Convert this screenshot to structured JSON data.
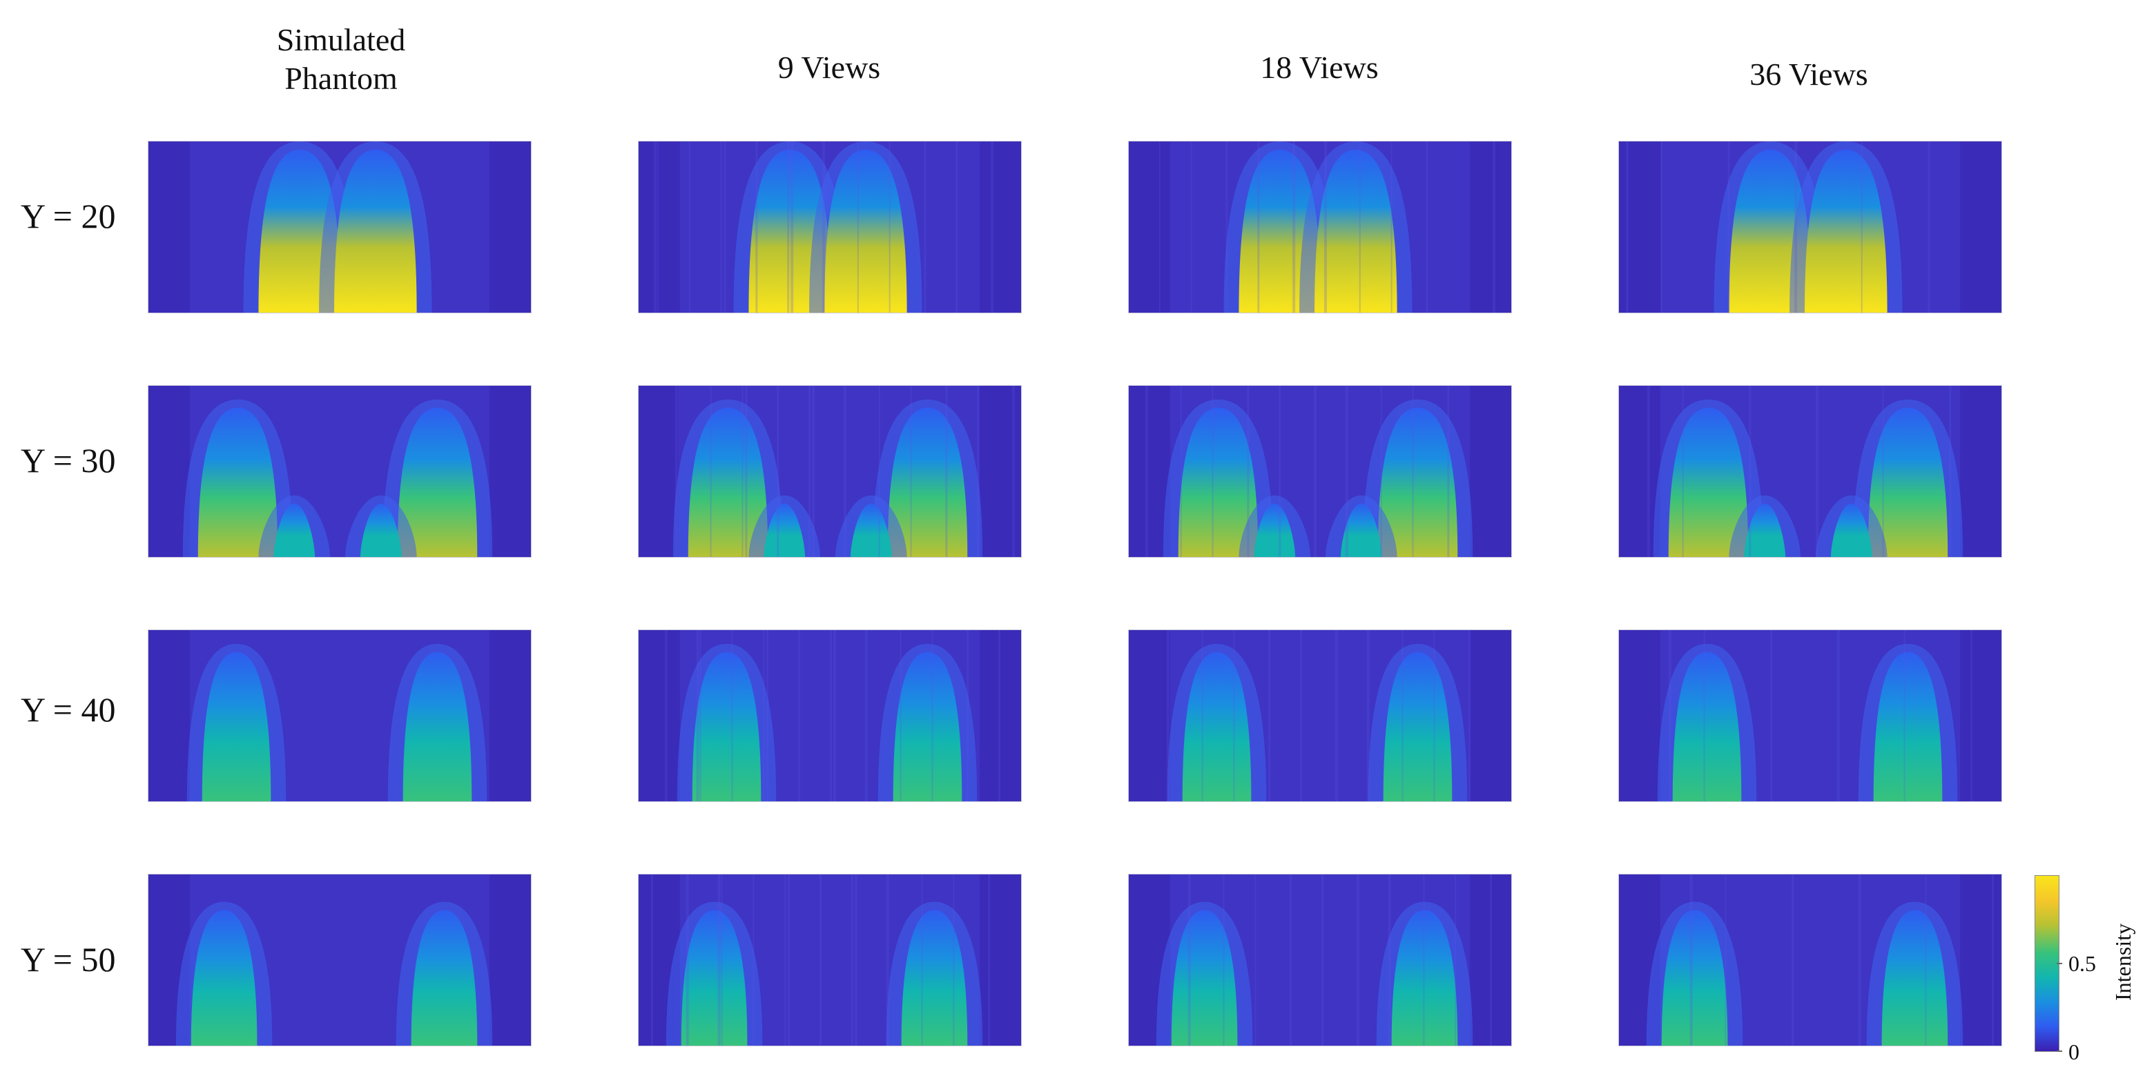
{
  "columns": [
    {
      "title": "Simulated\nPhantom"
    },
    {
      "title": "9 Views"
    },
    {
      "title": "18 Views"
    },
    {
      "title": "36 Views"
    }
  ],
  "rows": [
    {
      "label": "Y = 20",
      "peak": 0.92,
      "blob_separation": "narrow",
      "blob_count": 2
    },
    {
      "label": "Y = 30",
      "peak": 0.6,
      "blob_separation": "wide",
      "blob_count": 4
    },
    {
      "label": "Y = 40",
      "peak": 0.6,
      "blob_separation": "wide",
      "blob_count": 2
    },
    {
      "label": "Y = 50",
      "peak": 0.55,
      "blob_separation": "wide",
      "blob_count": 2
    }
  ],
  "colorbar": {
    "title": "Intensity",
    "ticks": [
      {
        "label": "0",
        "value": 0
      },
      {
        "label": "0.5",
        "value": 0.5
      }
    ],
    "range": [
      0,
      1
    ],
    "colormap": "parula",
    "colors": [
      "#3b1fb0",
      "#2f5cf0",
      "#1a8fe0",
      "#12b5b0",
      "#37c27c",
      "#b8c233",
      "#f6c72a",
      "#f9e51c"
    ]
  },
  "background_color": "#3a2bb8"
}
